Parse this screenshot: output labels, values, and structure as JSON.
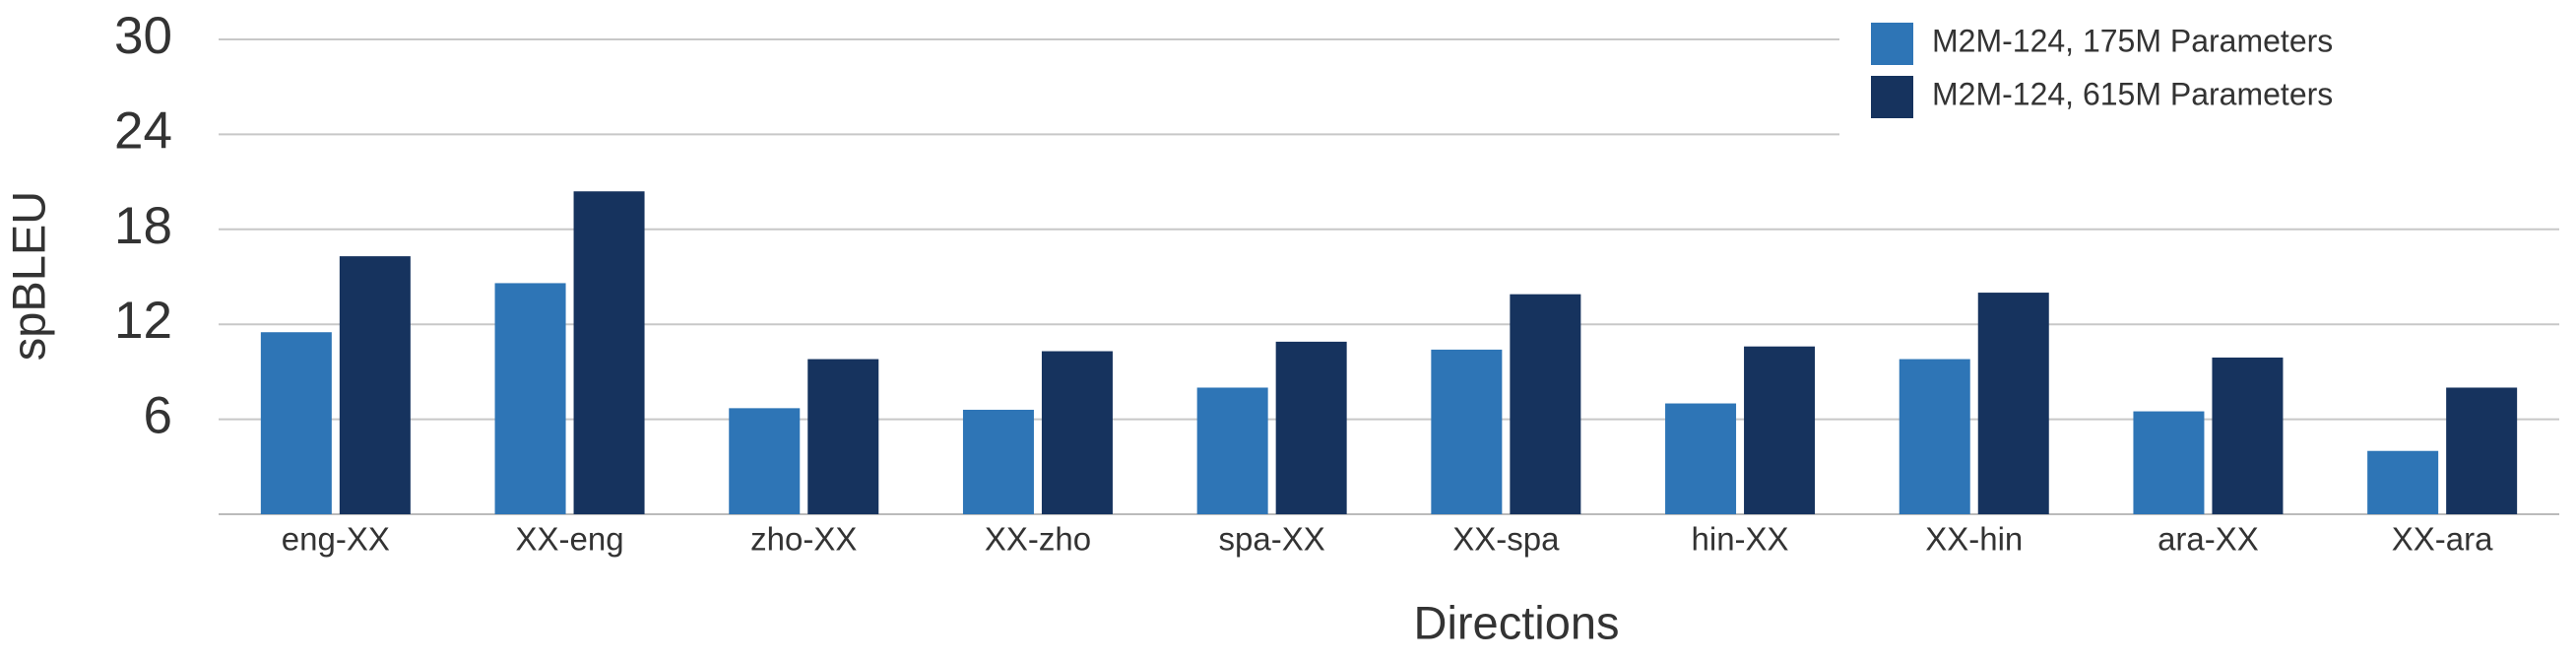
{
  "chart_data": {
    "type": "bar",
    "x_label": "Directions",
    "y_label": "spBLEU",
    "categories": [
      "eng-XX",
      "XX-eng",
      "zho-XX",
      "XX-zho",
      "spa-XX",
      "XX-spa",
      "hin-XX",
      "XX-hin",
      "ara-XX",
      "XX-ara"
    ],
    "series": [
      {
        "name": "M2M-124, 175M Parameters",
        "color": "#2e75b6",
        "values": [
          11.5,
          14.6,
          6.7,
          6.6,
          8.0,
          10.4,
          7.0,
          9.8,
          6.5,
          4.0
        ]
      },
      {
        "name": "M2M-124, 615M Parameters",
        "color": "#16335e",
        "values": [
          16.3,
          20.4,
          9.8,
          10.3,
          10.9,
          13.9,
          10.6,
          14.0,
          9.9,
          8.0
        ]
      }
    ],
    "ylim": [
      0,
      30
    ],
    "yticks": [
      6,
      12,
      18,
      24,
      30
    ],
    "grid": true,
    "legend": "upper right"
  }
}
